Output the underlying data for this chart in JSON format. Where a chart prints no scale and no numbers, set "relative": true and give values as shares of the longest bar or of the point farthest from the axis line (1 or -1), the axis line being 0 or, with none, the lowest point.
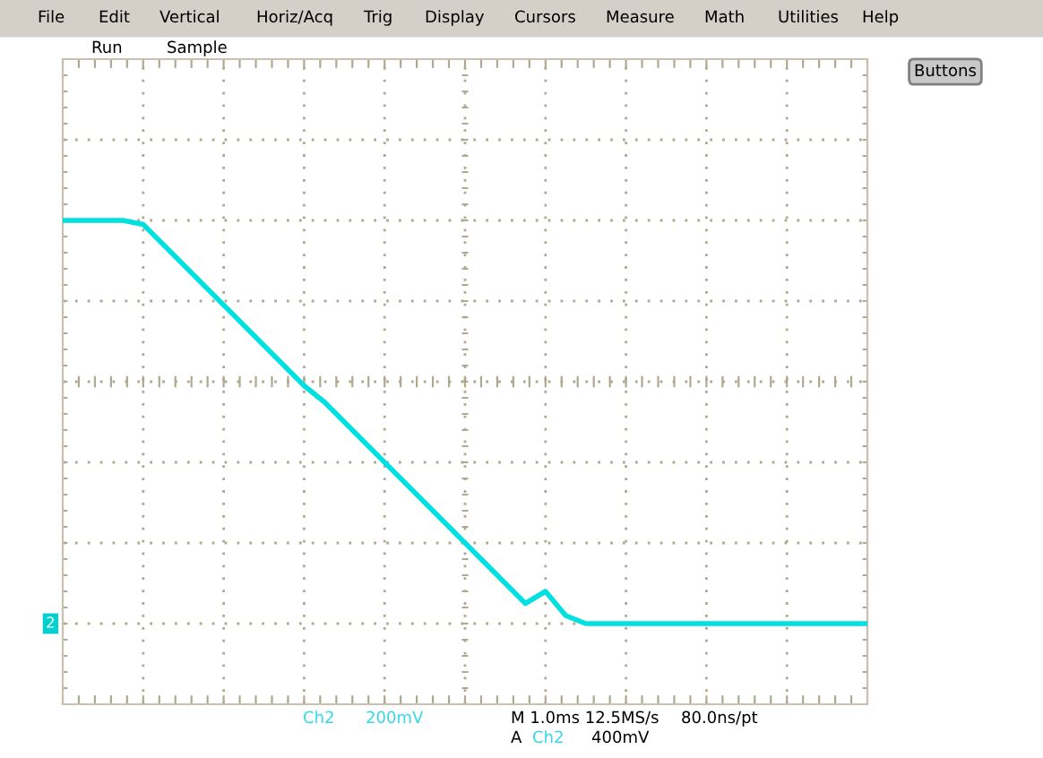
{
  "chart_data": {
    "type": "line",
    "relative": true,
    "grid": true,
    "tick_labels": false,
    "legend": false,
    "categories": [
      null,
      null,
      null,
      null,
      null,
      null,
      null,
      null,
      null,
      null,
      null,
      null,
      null,
      null,
      null,
      null,
      null,
      null,
      null,
      null,
      null,
      null,
      null,
      null,
      null,
      null,
      null,
      null,
      null,
      null,
      null,
      null,
      null,
      null,
      null,
      null,
      null,
      null,
      null,
      null,
      null
    ],
    "series": [
      {
        "color": "#00e0e0",
        "values": [
          1.0,
          1.0,
          1.0,
          1.0,
          0.99,
          0.94,
          0.89,
          0.84,
          0.79,
          0.74,
          0.69,
          0.64,
          0.59,
          0.55,
          0.5,
          0.45,
          0.4,
          0.35,
          0.3,
          0.25,
          0.2,
          0.15,
          0.1,
          0.05,
          0.08,
          0.02,
          0,
          0,
          0,
          0,
          0,
          0,
          0,
          0,
          0,
          0,
          0,
          0,
          0,
          0,
          0
        ]
      }
    ],
    "annotations": [
      "File",
      "Edit",
      "Vertical",
      "Horiz/Acq",
      "Trig",
      "Display",
      "Cursors",
      "Measure",
      "Math",
      "Utilities",
      "Help",
      "Run",
      "Sample",
      "Buttons",
      "Ch2",
      "200mV",
      "M 1.0ms 12.5MS/s",
      "80.0ns/pt",
      "A",
      "Ch2",
      "400mV",
      {
        "text": "2",
        "y": 0
      }
    ]
  }
}
